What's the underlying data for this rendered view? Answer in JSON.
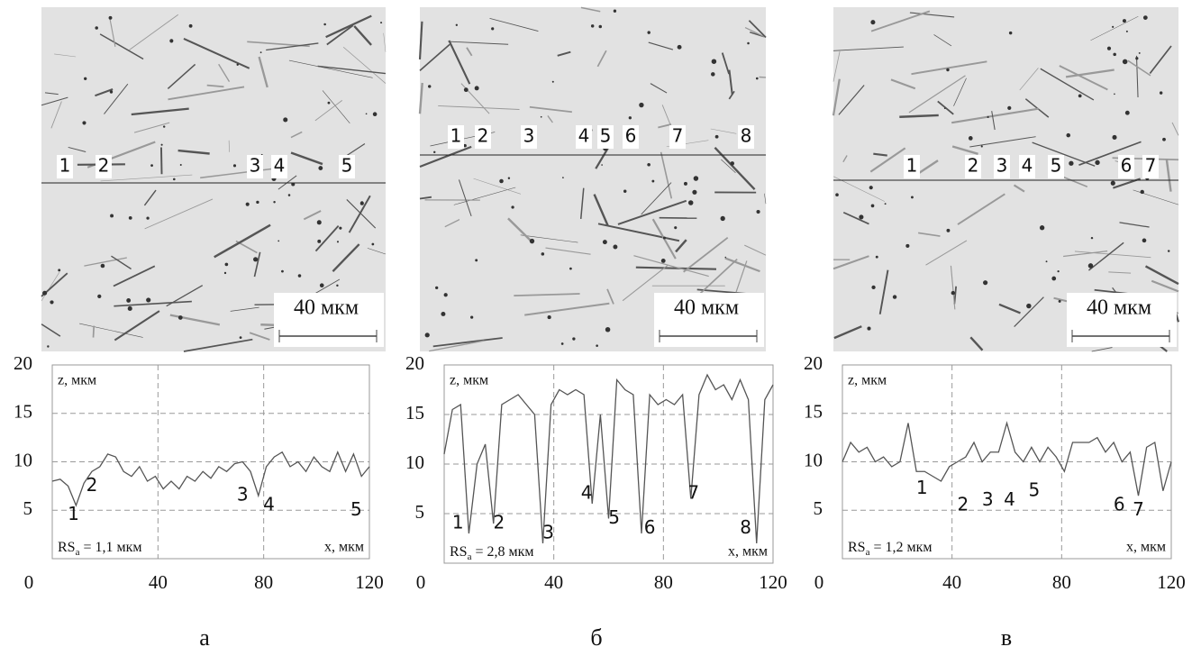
{
  "chart_data": [
    {
      "type": "line",
      "panel_label": "а",
      "scale_bar": "40 мкм",
      "image_labels": [
        "1",
        "2",
        "3",
        "4",
        "5"
      ],
      "x_label": "x, мкм",
      "y_label": "z, мкм",
      "annotation": {
        "text": "RS",
        "sub": "a",
        "rest": " = 1,1 мкм"
      },
      "xlim": [
        0,
        120
      ],
      "ylim": [
        0,
        20
      ],
      "xticks": [
        0,
        40,
        80,
        120
      ],
      "yticks": [
        5,
        10,
        15,
        20
      ],
      "grid": true,
      "color": "#555555",
      "x": [
        0,
        3,
        6,
        9,
        12,
        15,
        18,
        21,
        24,
        27,
        30,
        33,
        36,
        39,
        42,
        45,
        48,
        51,
        54,
        57,
        60,
        63,
        66,
        69,
        72,
        75,
        78,
        81,
        84,
        87,
        90,
        93,
        96,
        99,
        102,
        105,
        108,
        111,
        114,
        117,
        120
      ],
      "values": [
        8,
        8.2,
        7.5,
        5.5,
        7.8,
        9,
        9.5,
        10.8,
        10.5,
        9,
        8.5,
        9.5,
        8,
        8.5,
        7.2,
        8,
        7.2,
        8.5,
        8,
        9,
        8.3,
        9.5,
        9,
        9.8,
        10,
        9,
        6.5,
        9.5,
        10.5,
        11,
        9.5,
        10,
        9,
        10.5,
        9.5,
        9,
        11,
        9,
        10.8,
        8.5,
        9.5
      ],
      "point_labels": [
        {
          "text": "1",
          "x": 8,
          "y": 4.5
        },
        {
          "text": "2",
          "x": 15,
          "y": 7.5
        },
        {
          "text": "3",
          "x": 72,
          "y": 6.5
        },
        {
          "text": "4",
          "x": 82,
          "y": 5.5
        },
        {
          "text": "5",
          "x": 115,
          "y": 5
        }
      ]
    },
    {
      "type": "line",
      "panel_label": "б",
      "scale_bar": "40 мкм",
      "image_labels": [
        "1",
        "2",
        "3",
        "4",
        "5",
        "6",
        "7",
        "8"
      ],
      "x_label": "x, мкм",
      "y_label": "z, мкм",
      "annotation": {
        "text": "RS",
        "sub": "a",
        "rest": " = 2,8 мкм"
      },
      "xlim": [
        0,
        120
      ],
      "ylim": [
        0,
        20
      ],
      "xticks": [
        0,
        40,
        80,
        120
      ],
      "yticks": [
        5,
        10,
        15,
        20
      ],
      "grid": true,
      "color": "#555555",
      "x": [
        0,
        3,
        6,
        9,
        12,
        15,
        18,
        21,
        24,
        27,
        30,
        33,
        36,
        39,
        42,
        45,
        48,
        51,
        54,
        57,
        60,
        63,
        66,
        69,
        72,
        75,
        78,
        81,
        84,
        87,
        90,
        93,
        96,
        99,
        102,
        105,
        108,
        111,
        114,
        117,
        120
      ],
      "values": [
        11,
        15.5,
        16,
        3,
        10,
        12,
        4,
        16,
        16.5,
        17,
        16,
        15,
        2,
        16,
        17.5,
        17,
        17.5,
        17,
        6,
        15,
        4.5,
        18.5,
        17.5,
        17,
        3,
        17,
        16,
        16.5,
        16,
        17,
        6.5,
        17,
        19,
        17.5,
        18,
        16.5,
        18.5,
        16.5,
        2,
        16.5,
        18
      ],
      "point_labels": [
        {
          "text": "1",
          "x": 5,
          "y": 4
        },
        {
          "text": "2",
          "x": 20,
          "y": 4
        },
        {
          "text": "3",
          "x": 38,
          "y": 3
        },
        {
          "text": "4",
          "x": 52,
          "y": 7
        },
        {
          "text": "5",
          "x": 62,
          "y": 4.5
        },
        {
          "text": "6",
          "x": 75,
          "y": 3.5
        },
        {
          "text": "7",
          "x": 91,
          "y": 7
        },
        {
          "text": "8",
          "x": 110,
          "y": 3.5
        }
      ]
    },
    {
      "type": "line",
      "panel_label": "в",
      "scale_bar": "40 мкм",
      "image_labels": [
        "1",
        "2",
        "3",
        "4",
        "5",
        "6",
        "7"
      ],
      "x_label": "x, мкм",
      "y_label": "z, мкм",
      "annotation": {
        "text": "RS",
        "sub": "a",
        "rest": " = 1,2 мкм"
      },
      "xlim": [
        0,
        120
      ],
      "ylim": [
        0,
        20
      ],
      "xticks": [
        0,
        40,
        80,
        120
      ],
      "yticks": [
        5,
        10,
        15,
        20
      ],
      "grid": true,
      "color": "#555555",
      "x": [
        0,
        3,
        6,
        9,
        12,
        15,
        18,
        21,
        24,
        27,
        30,
        33,
        36,
        39,
        42,
        45,
        48,
        51,
        54,
        57,
        60,
        63,
        66,
        69,
        72,
        75,
        78,
        81,
        84,
        87,
        90,
        93,
        96,
        99,
        102,
        105,
        108,
        111,
        114,
        117,
        120
      ],
      "values": [
        10,
        12,
        11,
        11.5,
        10,
        10.5,
        9.5,
        10,
        14,
        9,
        9,
        8.5,
        8,
        9.5,
        10,
        10.5,
        12,
        10,
        11,
        11,
        14,
        11,
        10,
        11.5,
        10,
        11.5,
        10.5,
        9,
        12,
        12,
        12,
        12.5,
        11,
        12,
        10,
        11,
        6.5,
        11.5,
        12,
        7,
        10
      ],
      "point_labels": [
        {
          "text": "1",
          "x": 29,
          "y": 7.2
        },
        {
          "text": "2",
          "x": 44,
          "y": 5.5
        },
        {
          "text": "3",
          "x": 53,
          "y": 6
        },
        {
          "text": "4",
          "x": 61,
          "y": 6
        },
        {
          "text": "5",
          "x": 70,
          "y": 7
        },
        {
          "text": "6",
          "x": 101,
          "y": 5.5
        },
        {
          "text": "7",
          "x": 108,
          "y": 5
        }
      ]
    }
  ]
}
